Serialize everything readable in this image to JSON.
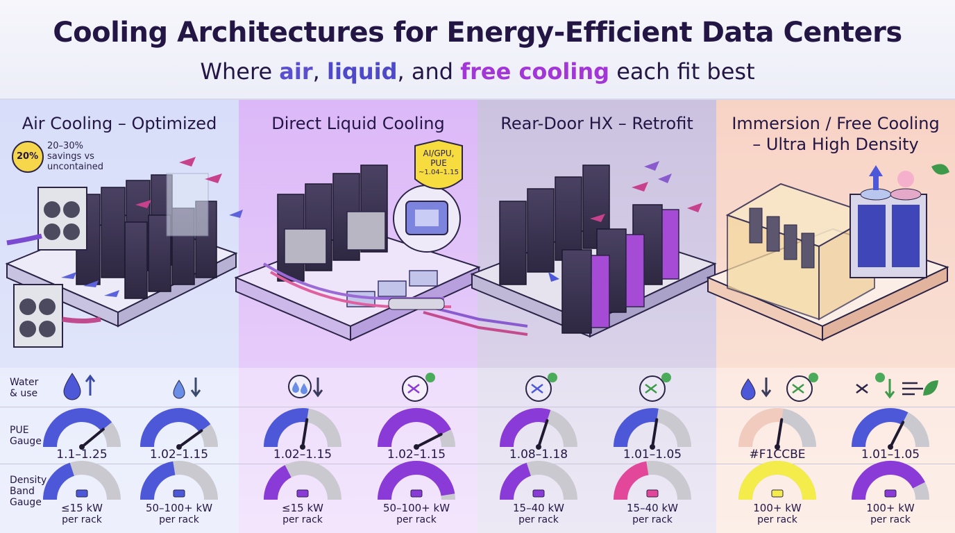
{
  "header": {
    "title": "Cooling Architectures for Energy-Efficient Data Centers",
    "subtitle_pre": "Where ",
    "subtitle_w1": "air",
    "subtitle_sep1": ", ",
    "subtitle_w2": "liquid",
    "subtitle_sep2": ", and ",
    "subtitle_w3": "free cooling",
    "subtitle_post": " each fit best"
  },
  "columns": [
    {
      "title": "Air Cooling – Optimized",
      "bg": "#dfe4fb"
    },
    {
      "title": "Direct Liquid Cooling",
      "bg": "#e9d2fb"
    },
    {
      "title": "Rear-Door HX – Retrofit",
      "bg": "#dcd6ec"
    },
    {
      "title_line1": "Immersion / Free Cooling",
      "title_line2": "– Ultra High Density",
      "bg": "#fbe2d6"
    }
  ],
  "badges": {
    "savings": {
      "value": "20%",
      "line1": "20–30%",
      "line2": "savings vs",
      "line3": "uncontained"
    },
    "aigpu": {
      "line1": "AI/GPU,",
      "line2": "PUE",
      "line3": "~1.04–1.15"
    }
  },
  "rows": {
    "water_label_1": "Water",
    "water_label_2": "& use",
    "pue_label_1": "PUE",
    "pue_label_2": "Gauge",
    "density_label_1": "Density",
    "density_label_2": "Band",
    "density_label_3": "Gauge"
  },
  "pue": [
    {
      "value": "1.1–1.25",
      "level": 0.78
    },
    {
      "value": "1.02–1.15",
      "level": 0.8
    },
    {
      "value": "1.02–1.15",
      "level": 0.55
    },
    {
      "value": "1.02–1.15",
      "level": 0.85
    },
    {
      "value": "1.08–1.18",
      "level": 0.6
    },
    {
      "value": "1.01–1.05",
      "level": 0.55
    },
    {
      "value": "#F1CCBE",
      "level": 0.55
    },
    {
      "value": "1.01–1.05",
      "level": 0.65
    }
  ],
  "density": [
    {
      "line1": "≤15 kW",
      "line2": "per rack",
      "level": 0.4
    },
    {
      "line1": "50–100+ kW",
      "line2": "per rack",
      "level": 0.45
    },
    {
      "line1": "≤15 kW",
      "line2": "per rack",
      "level": 0.35
    },
    {
      "line1": "50–100+ kW",
      "line2": "per rack",
      "level": 0.95
    },
    {
      "line1": "15–40 kW",
      "line2": "per rack",
      "level": 0.4
    },
    {
      "line1": "15–40 kW",
      "line2": "per rack",
      "level": 0.45
    },
    {
      "line1": "100+ kW",
      "line2": "per rack",
      "level": 1.0
    },
    {
      "line1": "100+ kW",
      "line2": "per rack",
      "level": 0.85
    }
  ],
  "colors": {
    "gauge_blue": "#4d58d8",
    "gauge_purple": "#8a3ad6",
    "gauge_pink": "#e2479a",
    "gauge_yellow": "#f3ec4a",
    "gauge_track": "#c9c9cf",
    "gauge_peach": "#f1ccbe"
  }
}
